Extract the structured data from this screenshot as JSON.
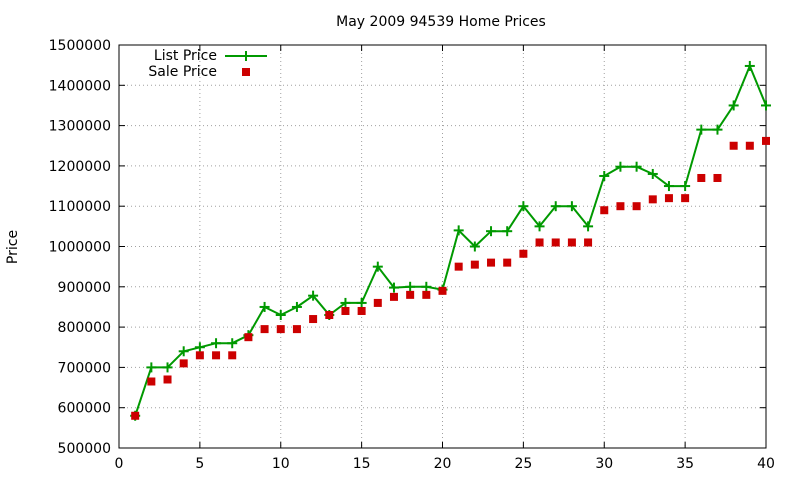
{
  "chart_data": {
    "type": "line",
    "title": "May 2009 94539 Home Prices",
    "xlabel": "",
    "ylabel": "Price",
    "xlim": [
      0,
      40
    ],
    "ylim": [
      500000,
      1500000
    ],
    "x_ticks": [
      0,
      5,
      10,
      15,
      20,
      25,
      30,
      35,
      40
    ],
    "y_ticks": [
      500000,
      600000,
      700000,
      800000,
      900000,
      1000000,
      1100000,
      1200000,
      1300000,
      1400000,
      1500000
    ],
    "grid": true,
    "legend_position": "top-left",
    "x": [
      1,
      2,
      3,
      4,
      5,
      6,
      7,
      8,
      9,
      10,
      11,
      12,
      13,
      14,
      15,
      16,
      17,
      18,
      19,
      20,
      21,
      22,
      23,
      24,
      25,
      26,
      27,
      28,
      29,
      30,
      31,
      32,
      33,
      34,
      35,
      36,
      37,
      38,
      39,
      40
    ],
    "series": [
      {
        "name": "List Price",
        "style": "line+cross",
        "color": "#009900",
        "values": [
          580000,
          700000,
          700000,
          740000,
          750000,
          760000,
          760000,
          780000,
          850000,
          830000,
          850000,
          878000,
          830000,
          860000,
          860000,
          950000,
          898000,
          900000,
          900000,
          893000,
          1040000,
          1000000,
          1038000,
          1038000,
          1100000,
          1050000,
          1100000,
          1100000,
          1050000,
          1175000,
          1198000,
          1198000,
          1180000,
          1150000,
          1150000,
          1290000,
          1290000,
          1350000,
          1448000,
          1350000
        ]
      },
      {
        "name": "Sale Price",
        "style": "square",
        "color": "#cc0000",
        "values": [
          580000,
          665000,
          670000,
          710000,
          730000,
          730000,
          730000,
          775000,
          795000,
          795000,
          795000,
          820000,
          830000,
          840000,
          840000,
          860000,
          875000,
          880000,
          880000,
          890000,
          950000,
          955000,
          960000,
          960000,
          982000,
          1010000,
          1010000,
          1010000,
          1010000,
          1090000,
          1100000,
          1100000,
          1117000,
          1120000,
          1120000,
          1170000,
          1170000,
          1250000,
          1250000,
          1262000
        ]
      }
    ]
  }
}
